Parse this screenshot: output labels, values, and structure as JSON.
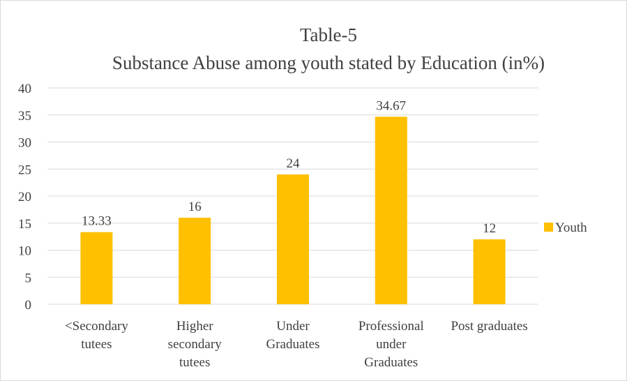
{
  "chart_data": {
    "type": "bar",
    "title": "Table-5",
    "subtitle": "Substance Abuse among youth stated by Education (in%)",
    "categories": [
      [
        "<Secondary",
        "tutees"
      ],
      [
        "Higher",
        "secondary",
        "tutees"
      ],
      [
        "Under",
        "Graduates"
      ],
      [
        "Professional",
        "under",
        "Graduates"
      ],
      [
        "Post graduates"
      ]
    ],
    "series": [
      {
        "name": "Youth",
        "values": [
          13.33,
          16,
          24,
          34.67,
          12
        ],
        "color": "#FFC000"
      }
    ],
    "data_labels": [
      "13.33",
      "16",
      "24",
      "34.67",
      "12"
    ],
    "ylim": [
      0,
      40
    ],
    "yticks": [
      0,
      5,
      10,
      15,
      20,
      25,
      30,
      35,
      40
    ],
    "grid": true,
    "legend_position": "right"
  }
}
